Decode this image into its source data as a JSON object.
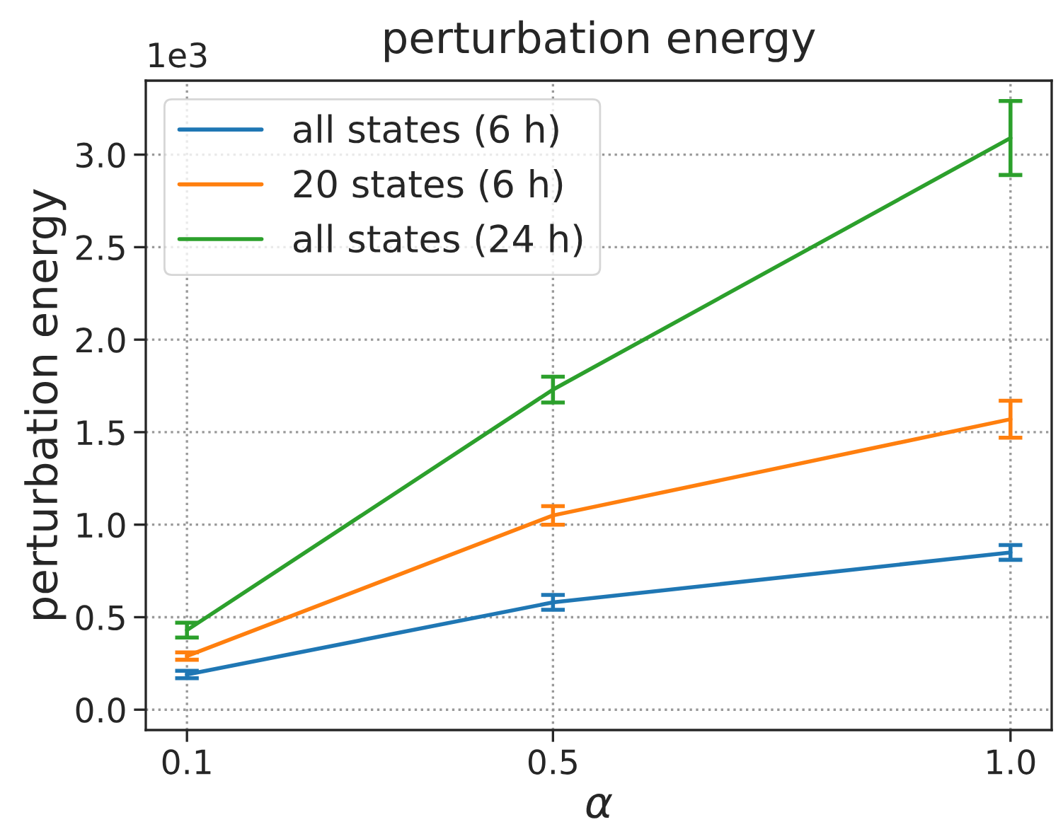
{
  "chart_data": {
    "type": "line",
    "title": "perturbation energy",
    "xlabel": "α",
    "ylabel": "perturbation energy",
    "annotations": [
      "1e3"
    ],
    "x": [
      0.1,
      0.5,
      1.0
    ],
    "series": [
      {
        "name": "all states (6 h)",
        "color": "#1f77b4",
        "values": [
          0.19,
          0.58,
          0.85
        ],
        "errors": [
          0.02,
          0.04,
          0.04
        ]
      },
      {
        "name": "20 states (6 h)",
        "color": "#ff7f0e",
        "values": [
          0.29,
          1.05,
          1.57
        ],
        "errors": [
          0.02,
          0.05,
          0.1
        ]
      },
      {
        "name": "all states (24 h)",
        "color": "#2ca02c",
        "values": [
          0.43,
          1.73,
          3.09
        ],
        "errors": [
          0.04,
          0.07,
          0.2
        ]
      }
    ],
    "xlim": [
      0.055,
      1.045
    ],
    "xticks": [
      0.1,
      0.5,
      {
        "value": 1.0,
        "label": "1.0"
      }
    ],
    "ylim": [
      -0.11,
      3.4
    ],
    "yticks": [
      {
        "value": 0,
        "label": "0.0"
      },
      0.5,
      {
        "value": 1,
        "label": "1.0"
      },
      1.5,
      {
        "value": 2,
        "label": "2.0"
      },
      2.5,
      {
        "value": 3,
        "label": "3.0"
      }
    ],
    "grid": true,
    "legend": "top left",
    "marker": "none",
    "line_style": "solid"
  }
}
